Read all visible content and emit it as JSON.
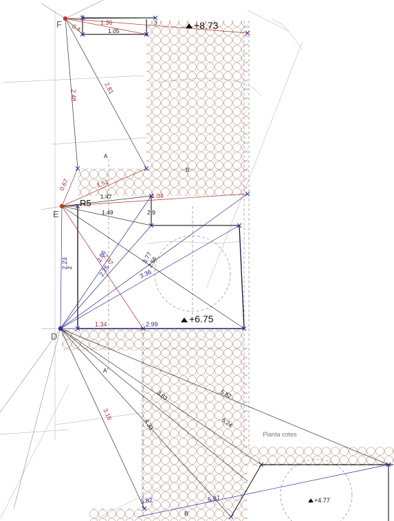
{
  "stations": [
    {
      "id": "F",
      "label": "F",
      "color": "#c0392b"
    },
    {
      "id": "E",
      "label": "E",
      "color": "#c0392b"
    },
    {
      "id": "D",
      "label": "D",
      "color": "#2c2c9a"
    }
  ],
  "levels": {
    "top": "+8.73",
    "middle": "+6.75",
    "bottom": "+4.77"
  },
  "room": "R5",
  "caption": "Planta cotes",
  "section_marks": {
    "a_top": "A",
    "a_bottom": "A'",
    "b_top": "B",
    "b_bottom": "B'"
  },
  "dimensions_black": [
    "1.05",
    "3",
    "1.47",
    "1.49",
    "2.9",
    "2",
    "2.56",
    "3.83",
    "5.82",
    "4.33",
    "6.24"
  ],
  "dimensions_red": [
    "0.4",
    "1.36",
    "2.48",
    "2.81",
    "0.67",
    "1.51",
    "1.04",
    "2.37",
    "1.34",
    "3.16"
  ],
  "dimensions_blue": [
    "2.23",
    "2.86",
    "2.25",
    "3.77",
    "3.36",
    "2.99",
    "3.82",
    "5.87"
  ],
  "colors": {
    "stone_fill": "#b08a78",
    "black_dimension": "#333333",
    "red_dimension": "#a52a2a",
    "blue_dimension": "#24248f"
  }
}
